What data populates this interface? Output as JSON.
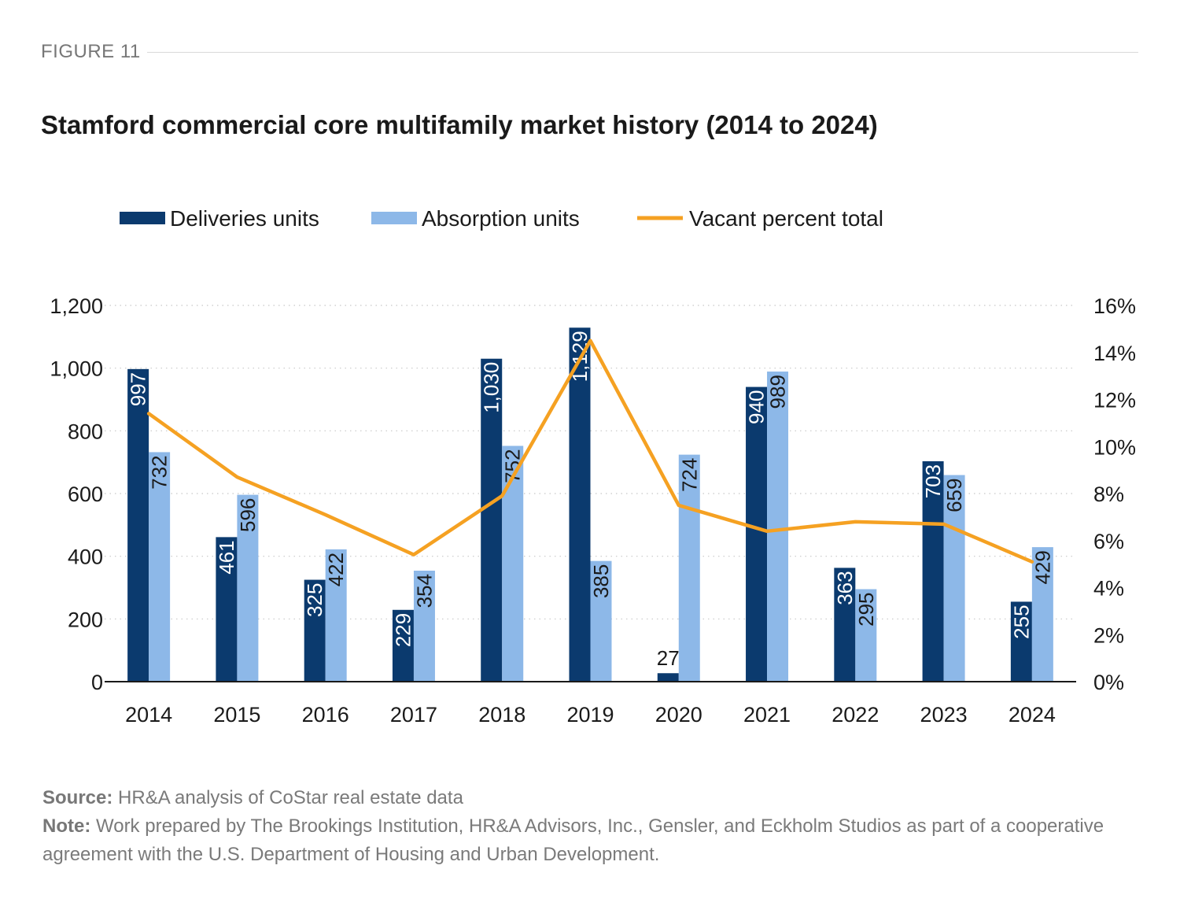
{
  "figure_label": "FIGURE 11",
  "title": "Stamford commercial core multifamily market history (2014 to 2024)",
  "source_label": "Source:",
  "source_text": " HR&A analysis of CoStar real estate data",
  "note_label": "Note:",
  "note_text": " Work prepared by The Brookings Institution, HR&A Advisors, Inc., Gensler, and Eckholm Studios as part of a cooperative agreement with the U.S. Department of Housing and Urban Development.",
  "colors": {
    "deliveries": "#0b3a6e",
    "absorption": "#8db8e8",
    "vacancy": "#f5a122",
    "grid": "#c8c8c8",
    "axis": "#1a1a1a"
  },
  "chart_data": {
    "type": "bar",
    "categories": [
      "2014",
      "2015",
      "2016",
      "2017",
      "2018",
      "2019",
      "2020",
      "2021",
      "2022",
      "2023",
      "2024"
    ],
    "series": [
      {
        "name": "Deliveries units",
        "type": "bar",
        "axis": "left",
        "values": [
          997,
          461,
          325,
          229,
          1030,
          1129,
          27,
          940,
          363,
          703,
          255
        ],
        "labels": [
          "997",
          "461",
          "325",
          "229",
          "1,030",
          "1,129",
          "27",
          "940",
          "363",
          "703",
          "255"
        ]
      },
      {
        "name": "Absorption units",
        "type": "bar",
        "axis": "left",
        "values": [
          732,
          596,
          422,
          354,
          752,
          385,
          724,
          989,
          295,
          659,
          429
        ],
        "labels": [
          "732",
          "596",
          "422",
          "354",
          "752",
          "385",
          "724",
          "989",
          "295",
          "659",
          "429"
        ]
      },
      {
        "name": "Vacant percent total",
        "type": "line",
        "axis": "right",
        "values": [
          11.4,
          8.7,
          7.1,
          5.4,
          7.9,
          14.5,
          7.5,
          6.4,
          6.8,
          6.7,
          5.1
        ]
      }
    ],
    "y_left": {
      "min": 0,
      "max": 1200,
      "ticks": [
        0,
        200,
        400,
        600,
        800,
        1000,
        1200
      ],
      "tick_labels": [
        "0",
        "200",
        "400",
        "600",
        "800",
        "1,000",
        "1,200"
      ]
    },
    "y_right": {
      "min": 0,
      "max": 16,
      "ticks": [
        0,
        2,
        4,
        6,
        8,
        10,
        12,
        14,
        16
      ],
      "tick_labels": [
        "0%",
        "2%",
        "4%",
        "6%",
        "8%",
        "10%",
        "12%",
        "14%",
        "16%"
      ]
    },
    "grid": "horizontal-dotted",
    "legend_position": "top-left"
  }
}
